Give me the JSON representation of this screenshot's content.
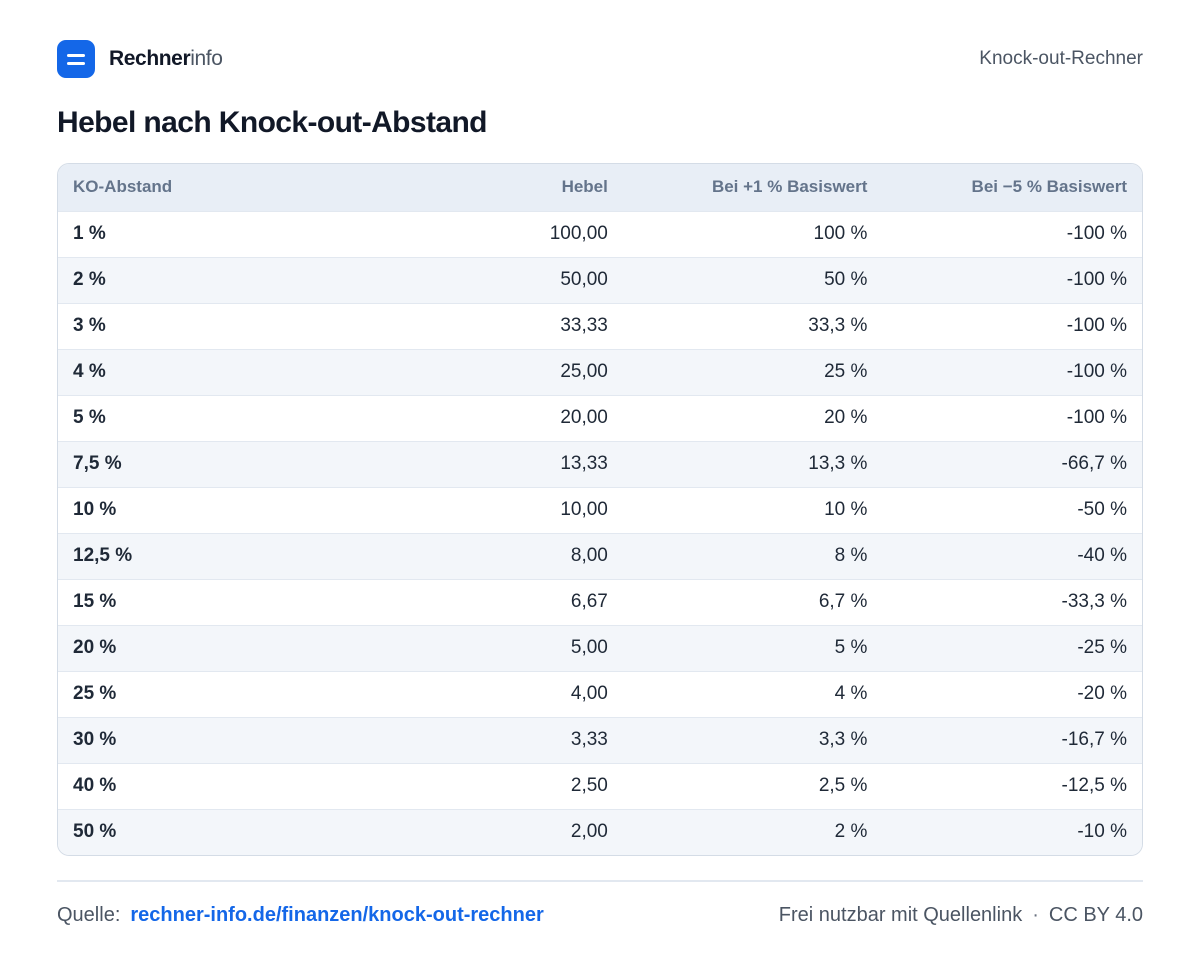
{
  "brand": {
    "name_strong": "Rechner",
    "name_light": "info"
  },
  "header": {
    "right_label": "Knock-out-Rechner",
    "title": "Hebel nach Knock-out-Abstand"
  },
  "table": {
    "columns": [
      "KO-Abstand",
      "Hebel",
      "Bei +1 % Basiswert",
      "Bei −5 % Basiswert"
    ],
    "rows": [
      [
        "1 %",
        "100,00",
        "100 %",
        "-100 %"
      ],
      [
        "2 %",
        "50,00",
        "50 %",
        "-100 %"
      ],
      [
        "3 %",
        "33,33",
        "33,3 %",
        "-100 %"
      ],
      [
        "4 %",
        "25,00",
        "25 %",
        "-100 %"
      ],
      [
        "5 %",
        "20,00",
        "20 %",
        "-100 %"
      ],
      [
        "7,5 %",
        "13,33",
        "13,3 %",
        "-66,7 %"
      ],
      [
        "10 %",
        "10,00",
        "10 %",
        "-50 %"
      ],
      [
        "12,5 %",
        "8,00",
        "8 %",
        "-40 %"
      ],
      [
        "15 %",
        "6,67",
        "6,7 %",
        "-33,3 %"
      ],
      [
        "20 %",
        "5,00",
        "5 %",
        "-25 %"
      ],
      [
        "25 %",
        "4,00",
        "4 %",
        "-20 %"
      ],
      [
        "30 %",
        "3,33",
        "3,3 %",
        "-16,7 %"
      ],
      [
        "40 %",
        "2,50",
        "2,5 %",
        "-12,5 %"
      ],
      [
        "50 %",
        "2,00",
        "2 %",
        "-10 %"
      ]
    ]
  },
  "footer": {
    "source_label": "Quelle:",
    "source_link": "rechner-info.de/finanzen/knock-out-rechner",
    "usage_note": "Frei nutzbar mit Quellenlink",
    "separator": "·",
    "license": "CC BY 4.0"
  },
  "colors": {
    "accent": "#1467e8",
    "header_bg": "#e8eef6",
    "row_alt_bg": "#f3f6fa"
  }
}
